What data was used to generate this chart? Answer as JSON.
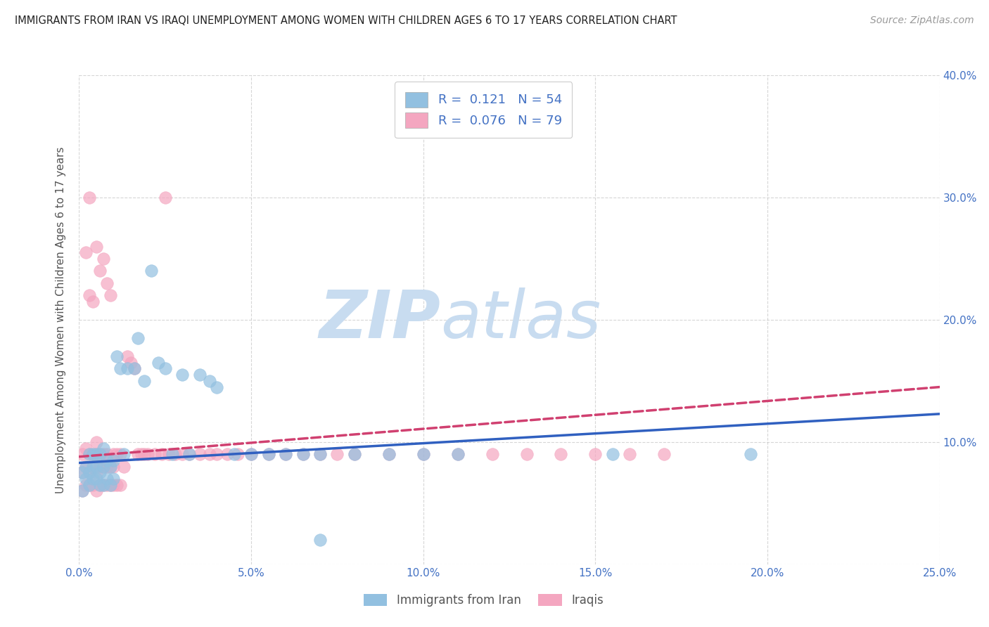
{
  "title": "IMMIGRANTS FROM IRAN VS IRAQI UNEMPLOYMENT AMONG WOMEN WITH CHILDREN AGES 6 TO 17 YEARS CORRELATION CHART",
  "source": "Source: ZipAtlas.com",
  "ylabel": "Unemployment Among Women with Children Ages 6 to 17 years",
  "xlim": [
    0,
    0.25
  ],
  "ylim": [
    0,
    0.4
  ],
  "xticks": [
    0.0,
    0.05,
    0.1,
    0.15,
    0.2,
    0.25
  ],
  "yticks": [
    0.0,
    0.1,
    0.2,
    0.3,
    0.4
  ],
  "legend_R1": "0.121",
  "legend_N1": "54",
  "legend_R2": "0.076",
  "legend_N2": "79",
  "series1_color": "#92C0E0",
  "series2_color": "#F4A6C0",
  "trendline1_color": "#3060C0",
  "trendline2_color": "#D04070",
  "watermark_zip": "ZIP",
  "watermark_atlas": "atlas",
  "watermark_color": "#C8DCF0",
  "legend_label1": "Immigrants from Iran",
  "legend_label2": "Iraqis",
  "background_color": "#FFFFFF",
  "grid_color": "#CCCCCC",
  "series1_x": [
    0.001,
    0.001,
    0.002,
    0.002,
    0.003,
    0.003,
    0.003,
    0.004,
    0.004,
    0.004,
    0.005,
    0.005,
    0.005,
    0.006,
    0.006,
    0.006,
    0.007,
    0.007,
    0.007,
    0.008,
    0.008,
    0.009,
    0.009,
    0.01,
    0.01,
    0.011,
    0.012,
    0.013,
    0.014,
    0.016,
    0.017,
    0.019,
    0.021,
    0.023,
    0.025,
    0.027,
    0.03,
    0.032,
    0.035,
    0.038,
    0.04,
    0.045,
    0.05,
    0.055,
    0.06,
    0.065,
    0.07,
    0.08,
    0.09,
    0.1,
    0.11,
    0.155,
    0.195,
    0.07
  ],
  "series1_y": [
    0.06,
    0.075,
    0.07,
    0.08,
    0.065,
    0.075,
    0.09,
    0.07,
    0.08,
    0.09,
    0.07,
    0.08,
    0.09,
    0.065,
    0.075,
    0.09,
    0.065,
    0.08,
    0.095,
    0.07,
    0.085,
    0.065,
    0.08,
    0.07,
    0.085,
    0.17,
    0.16,
    0.09,
    0.16,
    0.16,
    0.185,
    0.15,
    0.24,
    0.165,
    0.16,
    0.09,
    0.155,
    0.09,
    0.155,
    0.15,
    0.145,
    0.09,
    0.09,
    0.09,
    0.09,
    0.09,
    0.09,
    0.09,
    0.09,
    0.09,
    0.09,
    0.09,
    0.09,
    0.02
  ],
  "series2_x": [
    0.001,
    0.001,
    0.001,
    0.002,
    0.002,
    0.002,
    0.003,
    0.003,
    0.003,
    0.003,
    0.004,
    0.004,
    0.004,
    0.005,
    0.005,
    0.005,
    0.005,
    0.006,
    0.006,
    0.006,
    0.007,
    0.007,
    0.007,
    0.008,
    0.008,
    0.008,
    0.009,
    0.009,
    0.01,
    0.01,
    0.01,
    0.011,
    0.011,
    0.012,
    0.012,
    0.013,
    0.014,
    0.015,
    0.016,
    0.017,
    0.018,
    0.019,
    0.02,
    0.022,
    0.024,
    0.026,
    0.028,
    0.03,
    0.032,
    0.035,
    0.038,
    0.04,
    0.043,
    0.046,
    0.05,
    0.055,
    0.06,
    0.065,
    0.07,
    0.075,
    0.08,
    0.09,
    0.1,
    0.11,
    0.12,
    0.13,
    0.14,
    0.15,
    0.16,
    0.17,
    0.004,
    0.025,
    0.005,
    0.002,
    0.006,
    0.003,
    0.008,
    0.009,
    0.007
  ],
  "series2_y": [
    0.06,
    0.075,
    0.09,
    0.065,
    0.08,
    0.095,
    0.065,
    0.075,
    0.09,
    0.22,
    0.065,
    0.08,
    0.09,
    0.06,
    0.075,
    0.09,
    0.1,
    0.065,
    0.08,
    0.09,
    0.065,
    0.08,
    0.09,
    0.065,
    0.08,
    0.09,
    0.065,
    0.08,
    0.065,
    0.08,
    0.09,
    0.065,
    0.09,
    0.065,
    0.09,
    0.08,
    0.17,
    0.165,
    0.16,
    0.09,
    0.09,
    0.09,
    0.09,
    0.09,
    0.09,
    0.09,
    0.09,
    0.09,
    0.09,
    0.09,
    0.09,
    0.09,
    0.09,
    0.09,
    0.09,
    0.09,
    0.09,
    0.09,
    0.09,
    0.09,
    0.09,
    0.09,
    0.09,
    0.09,
    0.09,
    0.09,
    0.09,
    0.09,
    0.09,
    0.09,
    0.215,
    0.3,
    0.26,
    0.255,
    0.24,
    0.3,
    0.23,
    0.22,
    0.25
  ],
  "trendline1_x0": 0.0,
  "trendline1_y0": 0.083,
  "trendline1_x1": 0.25,
  "trendline1_y1": 0.123,
  "trendline2_x0": 0.0,
  "trendline2_y0": 0.088,
  "trendline2_x1": 0.25,
  "trendline2_y1": 0.145
}
